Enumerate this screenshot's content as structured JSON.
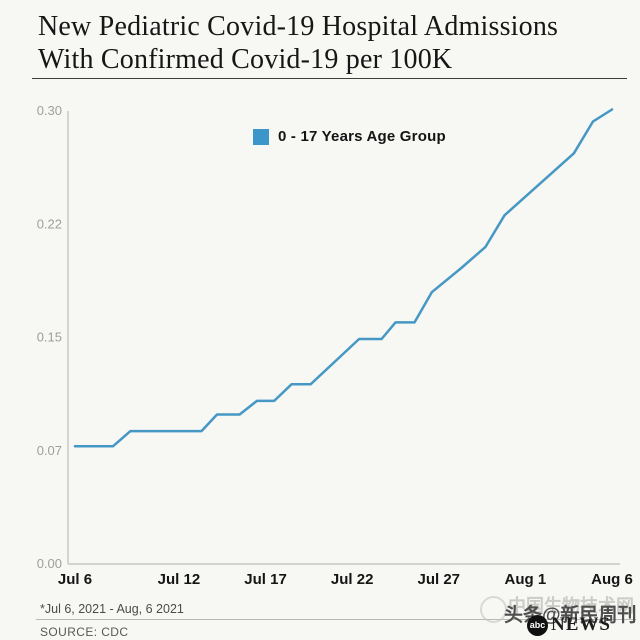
{
  "title": {
    "line1": "New Pediatric Covid-19 Hospital Admissions",
    "line2": "With Confirmed Covid-19 per 100K"
  },
  "legend": {
    "label": "0 - 17 Years Age Group",
    "swatch_color": "#3d96c9"
  },
  "footer": {
    "date_range_note": "*Jul 6, 2021 - Aug, 6 2021",
    "source": "SOURCE: CDC"
  },
  "watermarks": {
    "faint_text": "中国生物技术网",
    "dark_text": "头条@新民周刊",
    "abc_circle": "abc",
    "abc_wordmark": "NEWS"
  },
  "chart_data": {
    "type": "line",
    "title": "New Pediatric Covid-19 Hospital Admissions With Confirmed Covid-19 per 100K",
    "series_name": "0 - 17 Years Age Group",
    "line_color": "#4698c4",
    "grid": false,
    "legend_position": "top-center",
    "xlabel": "",
    "ylabel": "",
    "x_unit": "days since Jul 6, 2021",
    "xlim_days": [
      0,
      31
    ],
    "ylim": [
      0,
      0.3
    ],
    "x_ticks": [
      {
        "label": "Jul 6",
        "day": 0
      },
      {
        "label": "Jul 12",
        "day": 6
      },
      {
        "label": "Jul 17",
        "day": 11
      },
      {
        "label": "Jul 22",
        "day": 16
      },
      {
        "label": "Jul 27",
        "day": 21
      },
      {
        "label": "Aug 1",
        "day": 26
      },
      {
        "label": "Aug 6",
        "day": 31
      }
    ],
    "y_ticks": [
      {
        "label": "0.00",
        "v": 0
      },
      {
        "label": "0.07",
        "v": 0.075
      },
      {
        "label": "0.15",
        "v": 0.15
      },
      {
        "label": "0.22",
        "v": 0.225
      },
      {
        "label": "0.30",
        "v": 0.3
      }
    ],
    "points": [
      [
        0,
        0.078
      ],
      [
        2.2,
        0.078
      ],
      [
        3.2,
        0.088
      ],
      [
        7.3,
        0.088
      ],
      [
        8.2,
        0.099
      ],
      [
        9.5,
        0.099
      ],
      [
        10.5,
        0.108
      ],
      [
        11.5,
        0.108
      ],
      [
        12.5,
        0.119
      ],
      [
        13.6,
        0.119
      ],
      [
        16.4,
        0.149
      ],
      [
        17.7,
        0.149
      ],
      [
        18.5,
        0.16
      ],
      [
        19.6,
        0.16
      ],
      [
        20.6,
        0.18
      ],
      [
        22.3,
        0.196
      ],
      [
        23.7,
        0.21
      ],
      [
        24.8,
        0.231
      ],
      [
        28.8,
        0.272
      ],
      [
        29.9,
        0.293
      ],
      [
        31,
        0.301
      ]
    ]
  }
}
